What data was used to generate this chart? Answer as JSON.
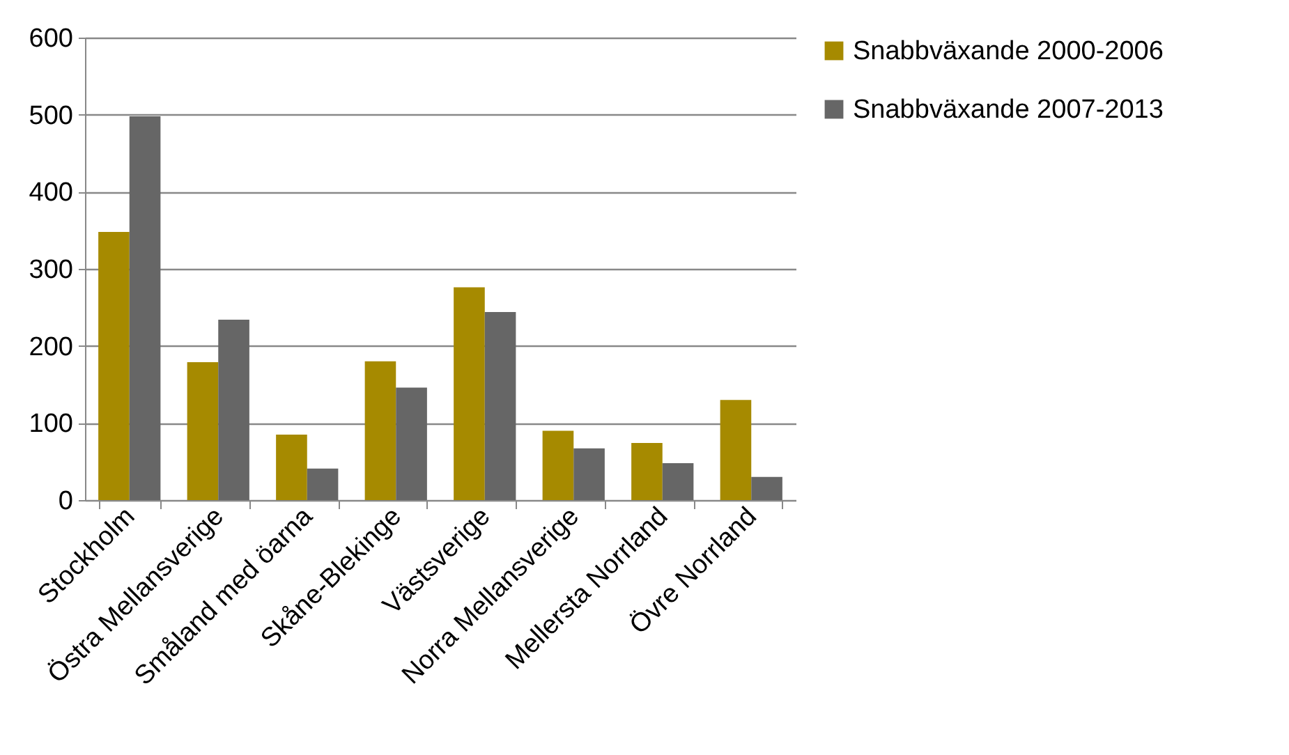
{
  "chart_data": {
    "type": "bar",
    "categories": [
      "Stockholm",
      "Östra Mellansverige",
      "Småland med öarna",
      "Skåne-Blekinge",
      "Västsverige",
      "Norra Mellansverige",
      "Mellersta Norrland",
      "Övre Norrland"
    ],
    "series": [
      {
        "name": "Snabbväxande 2000-2006",
        "color": "#a68a00",
        "values": [
          348,
          179,
          85,
          180,
          276,
          90,
          74,
          130
        ]
      },
      {
        "name": "Snabbväxande 2007-2013",
        "color": "#666666",
        "values": [
          498,
          234,
          41,
          146,
          244,
          67,
          48,
          30
        ]
      }
    ],
    "ylim": [
      0,
      600
    ],
    "yticks": [
      0,
      100,
      200,
      300,
      400,
      500,
      600
    ],
    "grid": "y",
    "legend": "right"
  }
}
